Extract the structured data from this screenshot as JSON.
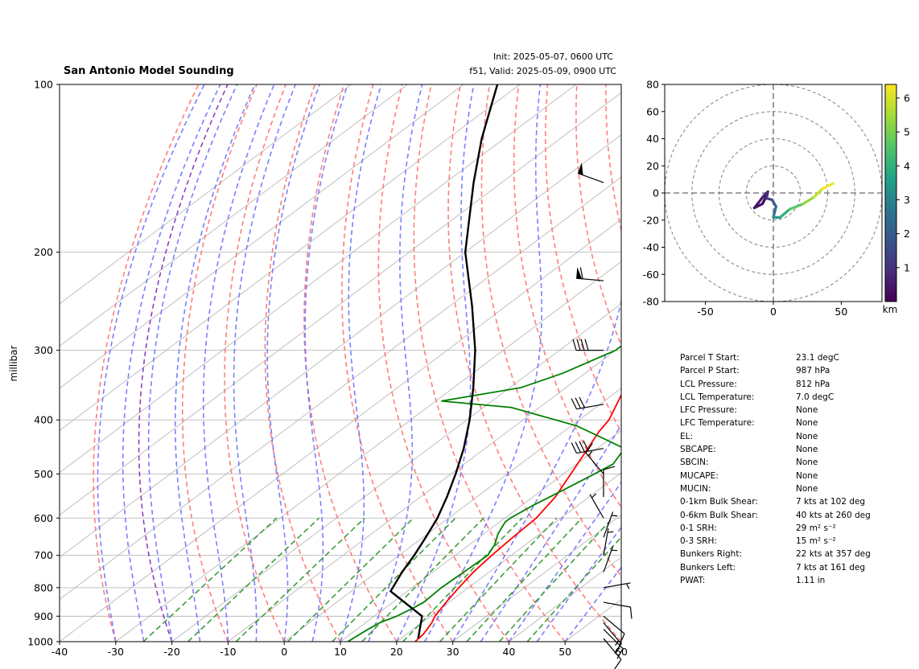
{
  "header": {
    "title": "San Antonio Model Sounding",
    "init": "Init: 2025-05-07, 0600 UTC",
    "valid": "f51, Valid: 2025-05-09, 0900 UTC"
  },
  "chart_data": [
    {
      "type": "line",
      "subtype": "skew-T log-P diagram",
      "ylabel": "millibar",
      "y_scale": "log",
      "xlim": [
        -40,
        60
      ],
      "ylim": [
        1000,
        100
      ],
      "x_ticks": [
        -40,
        -30,
        -20,
        -10,
        0,
        10,
        20,
        30,
        40,
        50,
        60
      ],
      "y_ticks": [
        1000,
        900,
        800,
        700,
        600,
        500,
        400,
        300,
        200,
        100
      ],
      "grid": true,
      "colors": {
        "temperature": "#ff0000",
        "dewpoint": "#008000",
        "parcel": "#000000",
        "dry_adiabats": "#ff7070",
        "moist_adiabats": "#7070ff",
        "mixing_ratio": "#339933",
        "isotherms": "#b0b0b0",
        "zero_isotherm": "#9040c0"
      },
      "series": [
        {
          "key": "temperature",
          "points": [
            [
              1000,
              23.3
            ],
            [
              970,
              23.0
            ],
            [
              950,
              22.5
            ],
            [
              925,
              21.8
            ],
            [
              900,
              20.8
            ],
            [
              850,
              19.5
            ],
            [
              800,
              18.3
            ],
            [
              750,
              17.2
            ],
            [
              700,
              16.5
            ],
            [
              650,
              16.0
            ],
            [
              600,
              15.6
            ],
            [
              550,
              14.0
            ],
            [
              500,
              11.3
            ],
            [
              450,
              8.3
            ],
            [
              420,
              6.3
            ],
            [
              400,
              5.3
            ],
            [
              350,
              0.5
            ],
            [
              300,
              -5.5
            ],
            [
              250,
              -10.5
            ],
            [
              225,
              -13.5
            ],
            [
              200,
              -17.5
            ],
            [
              175,
              -24.5
            ],
            [
              150,
              -33.5
            ],
            [
              125,
              -44
            ],
            [
              110,
              -52
            ],
            [
              100,
              -56
            ]
          ]
        },
        {
          "key": "dewpoint",
          "points": [
            [
              1000,
              11.3
            ],
            [
              950,
              12.0
            ],
            [
              925,
              12.5
            ],
            [
              900,
              14.0
            ],
            [
              870,
              15.0
            ],
            [
              850,
              15.5
            ],
            [
              800,
              15.2
            ],
            [
              750,
              15.5
            ],
            [
              700,
              15.8
            ],
            [
              670,
              14.5
            ],
            [
              640,
              12.5
            ],
            [
              610,
              11.0
            ],
            [
              600,
              11.0
            ],
            [
              570,
              12.0
            ],
            [
              540,
              13.5
            ],
            [
              500,
              15.5
            ],
            [
              480,
              16.5
            ],
            [
              450,
              14.8
            ],
            [
              410,
              1.0
            ],
            [
              380,
              -15
            ],
            [
              370,
              -29
            ],
            [
              350,
              -18
            ],
            [
              330,
              -14
            ],
            [
              300,
              -10
            ],
            [
              260,
              -10
            ],
            [
              200,
              -12
            ],
            [
              185,
              -13
            ],
            [
              150,
              -15
            ],
            [
              125,
              -19
            ],
            [
              110,
              -25
            ],
            [
              100,
              -30
            ]
          ]
        },
        {
          "key": "parcel",
          "points": [
            [
              987,
              23.1
            ],
            [
              900,
              18.5
            ],
            [
              812,
              7.0
            ],
            [
              750,
              4.5
            ],
            [
              700,
              2.7
            ],
            [
              650,
              0.5
            ],
            [
              600,
              -2.0
            ],
            [
              550,
              -5.3
            ],
            [
              500,
              -9.2
            ],
            [
              450,
              -13.8
            ],
            [
              400,
              -19.5
            ],
            [
              350,
              -26.5
            ],
            [
              300,
              -35
            ],
            [
              250,
              -46
            ],
            [
              200,
              -60
            ],
            [
              150,
              -75
            ],
            [
              125,
              -84
            ],
            [
              100,
              -94
            ]
          ]
        }
      ],
      "wind_barbs": [
        {
          "p": 987,
          "speed_kt": 12,
          "dir_deg": 140
        },
        {
          "p": 950,
          "speed_kt": 15,
          "dir_deg": 135
        },
        {
          "p": 925,
          "speed_kt": 15,
          "dir_deg": 140
        },
        {
          "p": 900,
          "speed_kt": 12,
          "dir_deg": 130
        },
        {
          "p": 850,
          "speed_kt": 10,
          "dir_deg": 100
        },
        {
          "p": 800,
          "speed_kt": 5,
          "dir_deg": 80
        },
        {
          "p": 750,
          "speed_kt": 5,
          "dir_deg": 20
        },
        {
          "p": 700,
          "speed_kt": 5,
          "dir_deg": 10
        },
        {
          "p": 650,
          "speed_kt": 5,
          "dir_deg": 20
        },
        {
          "p": 600,
          "speed_kt": 5,
          "dir_deg": 330
        },
        {
          "p": 550,
          "speed_kt": 10,
          "dir_deg": 0
        },
        {
          "p": 500,
          "speed_kt": 15,
          "dir_deg": 320
        },
        {
          "p": 450,
          "speed_kt": 40,
          "dir_deg": 260
        },
        {
          "p": 375,
          "speed_kt": 30,
          "dir_deg": 260
        },
        {
          "p": 300,
          "speed_kt": 40,
          "dir_deg": 270
        },
        {
          "p": 225,
          "speed_kt": 60,
          "dir_deg": 275
        },
        {
          "p": 150,
          "speed_kt": 50,
          "dir_deg": 290
        }
      ]
    },
    {
      "type": "line",
      "subtype": "hodograph",
      "xlim": [
        -80,
        80
      ],
      "ylim": [
        -80,
        80
      ],
      "x_ticks": [
        -50,
        0,
        50
      ],
      "y_ticks": [
        -80,
        -60,
        -40,
        -20,
        0,
        20,
        40,
        60,
        80
      ],
      "rings": [
        20,
        40,
        60,
        80
      ],
      "colorbar": {
        "label": "km",
        "ticks": [
          1,
          2,
          3,
          4,
          5,
          6
        ],
        "range": [
          0,
          6.4
        ],
        "colormap": [
          "#440154",
          "#472f7d",
          "#39568c",
          "#2a788e",
          "#20a486",
          "#52c569",
          "#a5db36",
          "#fde725"
        ]
      },
      "points": [
        {
          "u": -5,
          "v": -2,
          "z": 0.0
        },
        {
          "u": -8,
          "v": -8,
          "z": 0.2
        },
        {
          "u": -14,
          "v": -11,
          "z": 0.4
        },
        {
          "u": -7,
          "v": -2,
          "z": 0.6
        },
        {
          "u": -4,
          "v": 1,
          "z": 0.8
        },
        {
          "u": -5,
          "v": -4,
          "z": 1.1
        },
        {
          "u": -1,
          "v": -5,
          "z": 1.5
        },
        {
          "u": 2,
          "v": -10,
          "z": 2.2
        },
        {
          "u": 0,
          "v": -18,
          "z": 3.0
        },
        {
          "u": 5,
          "v": -18,
          "z": 3.6
        },
        {
          "u": 12,
          "v": -12,
          "z": 4.3
        },
        {
          "u": 22,
          "v": -8,
          "z": 5.0
        },
        {
          "u": 30,
          "v": -3,
          "z": 5.6
        },
        {
          "u": 36,
          "v": 3,
          "z": 6.1
        },
        {
          "u": 44,
          "v": 7,
          "z": 6.4
        }
      ]
    }
  ],
  "parameters": [
    {
      "label": "Parcel T Start:",
      "value": "23.1 degC"
    },
    {
      "label": "Parcel P Start:",
      "value": "987 hPa"
    },
    {
      "label": "LCL Pressure:",
      "value": "812 hPa"
    },
    {
      "label": "LCL Temperature:",
      "value": "7.0 degC"
    },
    {
      "label": "LFC Pressure:",
      "value": "None"
    },
    {
      "label": "LFC Temperature:",
      "value": "None"
    },
    {
      "label": "EL:",
      "value": "None"
    },
    {
      "label": "SBCAPE:",
      "value": "None"
    },
    {
      "label": "SBCIN:",
      "value": "None"
    },
    {
      "label": "MUCAPE:",
      "value": "None"
    },
    {
      "label": "MUCIN:",
      "value": "None"
    },
    {
      "label": "0-1km Bulk Shear:",
      "value": "7 kts at 102 deg"
    },
    {
      "label": "0-6km Bulk Shear:",
      "value": "40 kts at 260 deg"
    },
    {
      "label": "0-1 SRH:",
      "value": "29 m² s⁻²"
    },
    {
      "label": "0-3 SRH:",
      "value": "15 m² s⁻²"
    },
    {
      "label": "Bunkers Right:",
      "value": "22 kts at 357 deg"
    },
    {
      "label": "Bunkers Left:",
      "value": "7 kts at 161 deg"
    },
    {
      "label": "PWAT:",
      "value": "1.11 in"
    }
  ]
}
